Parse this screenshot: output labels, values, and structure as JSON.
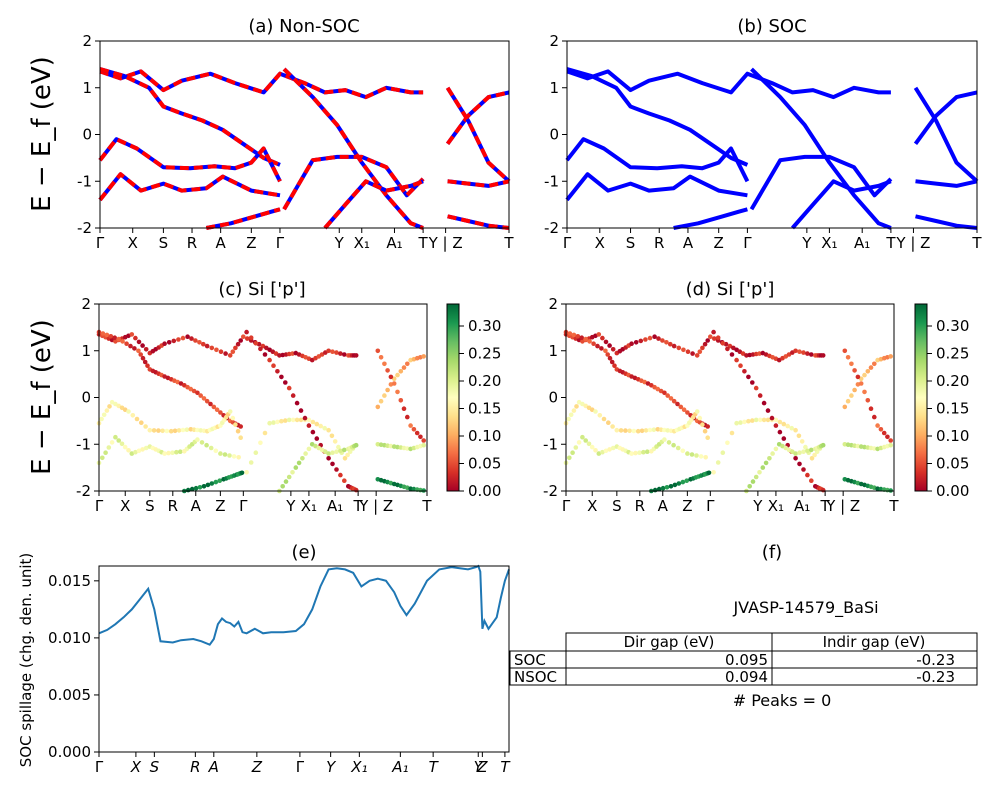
{
  "figure": {
    "panel_titles": [
      "(a) Non-SOC",
      "(b) SOC",
      "(c)  Si ['p']",
      "(d) Si ['p']",
      "(e)",
      "(f)"
    ],
    "ylabel_energy": "E − E_f (eV)",
    "ylabel_spillage": "SOC spillage (chg. den. unit)"
  },
  "chart_data": [
    {
      "id": "a",
      "type": "line",
      "title": "(a) Non-SOC",
      "ylabel": "E − E_f (eV)",
      "ylim": [
        -2,
        2
      ],
      "yticks": [
        -2,
        -1,
        0,
        1,
        2
      ],
      "kpath_labels": [
        "Γ",
        "X",
        "S",
        "R",
        "A",
        "Z",
        "Γ",
        "Y",
        "X₁",
        "A₁",
        "T",
        "Y | Z",
        "T"
      ],
      "kpath_positions": [
        0,
        0.08,
        0.155,
        0.225,
        0.295,
        0.37,
        0.44,
        0.585,
        0.64,
        0.72,
        0.79,
        0.845,
        1.0
      ],
      "styles": [
        "blue solid",
        "red dashed overlay"
      ],
      "bands": [
        {
          "x": [
            0,
            0.05,
            0.1,
            0.155,
            0.2,
            0.27,
            0.33,
            0.4,
            0.44,
            0.5,
            0.55,
            0.6,
            0.65,
            0.7,
            0.76,
            0.79
          ],
          "y": [
            1.35,
            1.2,
            1.35,
            0.95,
            1.15,
            1.3,
            1.1,
            0.9,
            1.3,
            1.1,
            0.9,
            0.95,
            0.8,
            1.0,
            0.9,
            0.9
          ]
        },
        {
          "x": [
            0,
            0.06,
            0.12,
            0.155,
            0.2,
            0.25,
            0.3,
            0.35,
            0.4,
            0.44
          ],
          "y": [
            1.4,
            1.25,
            1.0,
            0.6,
            0.45,
            0.3,
            0.1,
            -0.2,
            -0.5,
            -0.65
          ]
        },
        {
          "x": [
            0,
            0.04,
            0.09,
            0.155,
            0.22,
            0.28,
            0.33,
            0.37,
            0.4,
            0.44
          ],
          "y": [
            -0.55,
            -0.1,
            -0.3,
            -0.7,
            -0.72,
            -0.68,
            -0.72,
            -0.6,
            -0.3,
            -1.0
          ]
        },
        {
          "x": [
            0,
            0.05,
            0.1,
            0.155,
            0.2,
            0.26,
            0.3,
            0.37,
            0.44
          ],
          "y": [
            -1.4,
            -0.85,
            -1.2,
            -1.05,
            -1.2,
            -1.15,
            -0.9,
            -1.2,
            -1.3
          ]
        },
        {
          "x": [
            0.45,
            0.52,
            0.58,
            0.64,
            0.7,
            0.75,
            0.79
          ],
          "y": [
            -1.6,
            -0.55,
            -0.48,
            -0.48,
            -0.7,
            -1.3,
            -0.95
          ]
        },
        {
          "x": [
            0.45,
            0.52,
            0.58,
            0.64,
            0.7,
            0.76,
            0.79
          ],
          "y": [
            1.4,
            0.8,
            0.2,
            -0.6,
            -1.3,
            -1.9,
            -2.0
          ]
        },
        {
          "x": [
            0.55,
            0.6,
            0.65,
            0.7,
            0.76,
            0.79
          ],
          "y": [
            -2.0,
            -1.5,
            -1.0,
            -1.2,
            -1.1,
            -1.0
          ]
        },
        {
          "x": [
            0.26,
            0.32,
            0.38,
            0.42,
            0.44
          ],
          "y": [
            -2.0,
            -1.9,
            -1.75,
            -1.65,
            -1.6
          ]
        },
        {
          "x": [
            0.85,
            0.9,
            0.95,
            1.0
          ],
          "y": [
            -0.2,
            0.4,
            0.8,
            0.9
          ]
        },
        {
          "x": [
            0.85,
            0.9,
            0.95,
            1.0
          ],
          "y": [
            1.0,
            0.3,
            -0.6,
            -1.0
          ]
        },
        {
          "x": [
            0.85,
            0.9,
            0.95,
            1.0
          ],
          "y": [
            -1.75,
            -1.85,
            -1.95,
            -2.0
          ]
        },
        {
          "x": [
            0.85,
            0.9,
            0.95,
            1.0
          ],
          "y": [
            -1.0,
            -1.05,
            -1.1,
            -1.0
          ]
        }
      ]
    },
    {
      "id": "b",
      "type": "line",
      "title": "(b) SOC",
      "ylim": [
        -2,
        2
      ],
      "yticks": [
        -2,
        -1,
        0,
        1,
        2
      ],
      "kpath_labels": [
        "Γ",
        "X",
        "S",
        "R",
        "A",
        "Z",
        "Γ",
        "Y",
        "X₁",
        "A₁",
        "T",
        "Y | Z",
        "T"
      ],
      "styles": [
        "blue solid"
      ],
      "same_bands_as": "a"
    },
    {
      "id": "c",
      "type": "scatter",
      "title": "(c)  Si ['p']",
      "ylabel": "E − E_f (eV)",
      "ylim": [
        -2,
        2
      ],
      "yticks": [
        -2,
        -1,
        0,
        1,
        2
      ],
      "kpath_labels": [
        "Γ",
        "X",
        "S",
        "R",
        "A",
        "Z",
        "Γ",
        "Y",
        "X₁",
        "A₁",
        "T",
        "Y | Z",
        "T"
      ],
      "colormap": "RdYlGn",
      "colorbar_ticks": [
        "0.00",
        "0.05",
        "0.10",
        "0.15",
        "0.20",
        "0.25",
        "0.30"
      ],
      "colorbar_range": [
        0,
        0.34
      ]
    },
    {
      "id": "d",
      "type": "scatter",
      "title": "(d) Si ['p']",
      "ylim": [
        -2,
        2
      ],
      "yticks": [
        -2,
        -1,
        0,
        1,
        2
      ],
      "kpath_labels": [
        "Γ",
        "X",
        "S",
        "R",
        "A",
        "Z",
        "Γ",
        "Y",
        "X₁",
        "A₁",
        "T",
        "Y | Z",
        "T"
      ],
      "colormap": "RdYlGn",
      "colorbar_ticks": [
        "0.00",
        "0.05",
        "0.10",
        "0.15",
        "0.20",
        "0.25",
        "0.30"
      ],
      "colorbar_range": [
        0,
        0.34
      ]
    },
    {
      "id": "e",
      "type": "line",
      "title": "(e)",
      "ylabel": "SOC spillage (chg. den. unit)",
      "ylim": [
        0,
        0.0163
      ],
      "yticks": [
        "0.000",
        "0.005",
        "0.010",
        "0.015"
      ],
      "ytick_values": [
        0,
        0.005,
        0.01,
        0.015
      ],
      "xtick_labels": [
        "Γ",
        "X",
        "S",
        "R",
        "A",
        "Z",
        "Γ",
        "Y",
        "X₁",
        "A₁",
        "T",
        "Y",
        "Z",
        "T"
      ],
      "xtick_positions": [
        0,
        0.09,
        0.135,
        0.235,
        0.28,
        0.385,
        0.49,
        0.565,
        0.635,
        0.735,
        0.815,
        0.925,
        0.935,
        0.99
      ],
      "color": "#1f77b4",
      "x": [
        0,
        0.02,
        0.04,
        0.06,
        0.08,
        0.1,
        0.12,
        0.135,
        0.15,
        0.18,
        0.2,
        0.23,
        0.25,
        0.27,
        0.28,
        0.29,
        0.3,
        0.31,
        0.32,
        0.33,
        0.34,
        0.35,
        0.36,
        0.38,
        0.39,
        0.4,
        0.42,
        0.45,
        0.48,
        0.5,
        0.52,
        0.54,
        0.56,
        0.58,
        0.6,
        0.62,
        0.64,
        0.66,
        0.68,
        0.7,
        0.72,
        0.735,
        0.75,
        0.77,
        0.8,
        0.83,
        0.86,
        0.88,
        0.9,
        0.92,
        0.925,
        0.93,
        0.935,
        0.94,
        0.95,
        0.96,
        0.97,
        0.98,
        0.99,
        1.0
      ],
      "values": [
        0.0104,
        0.0107,
        0.0112,
        0.0118,
        0.0125,
        0.0134,
        0.0143,
        0.0125,
        0.0097,
        0.0096,
        0.0098,
        0.0099,
        0.0097,
        0.0094,
        0.0099,
        0.0112,
        0.0117,
        0.0114,
        0.0113,
        0.011,
        0.0114,
        0.0105,
        0.0104,
        0.0108,
        0.0106,
        0.0104,
        0.0105,
        0.0105,
        0.0106,
        0.0112,
        0.0125,
        0.0145,
        0.016,
        0.0161,
        0.016,
        0.0157,
        0.0145,
        0.015,
        0.0152,
        0.015,
        0.014,
        0.0128,
        0.012,
        0.013,
        0.015,
        0.016,
        0.0162,
        0.0161,
        0.016,
        0.0162,
        0.0163,
        0.0158,
        0.0108,
        0.0115,
        0.0108,
        0.0113,
        0.0118,
        0.0135,
        0.015,
        0.016
      ]
    },
    {
      "id": "f",
      "type": "table",
      "title": "(f)",
      "material_id": "JVASP-14579_BaSi",
      "columns": [
        "Dir gap (eV)",
        "Indir gap (eV)"
      ],
      "rows": [
        {
          "label": "SOC",
          "values": [
            "0.095",
            "-0.23"
          ]
        },
        {
          "label": "NSOC",
          "values": [
            "0.094",
            "-0.23"
          ]
        }
      ],
      "footer": "# Peaks = 0"
    }
  ]
}
